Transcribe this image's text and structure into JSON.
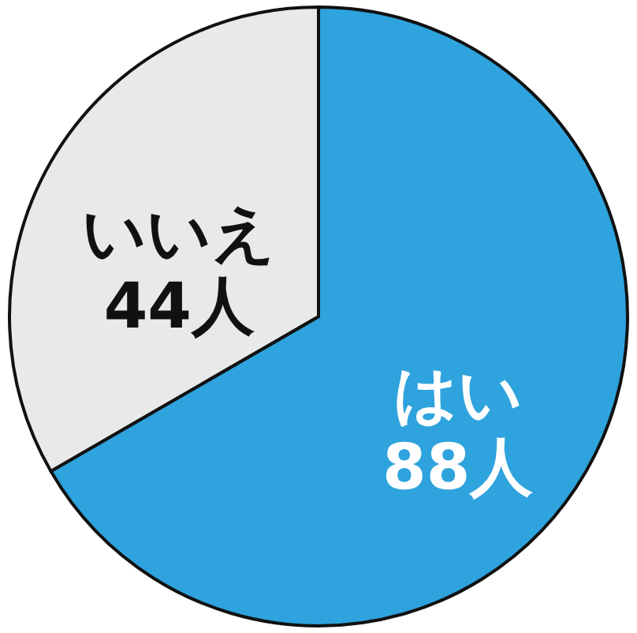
{
  "chart_data": {
    "type": "pie",
    "categories": [
      "はい",
      "いいえ"
    ],
    "values": [
      88,
      44
    ],
    "colors": [
      "#2ea3dd",
      "#e8e9e9"
    ],
    "value_labels": [
      "88人",
      "44人"
    ]
  }
}
